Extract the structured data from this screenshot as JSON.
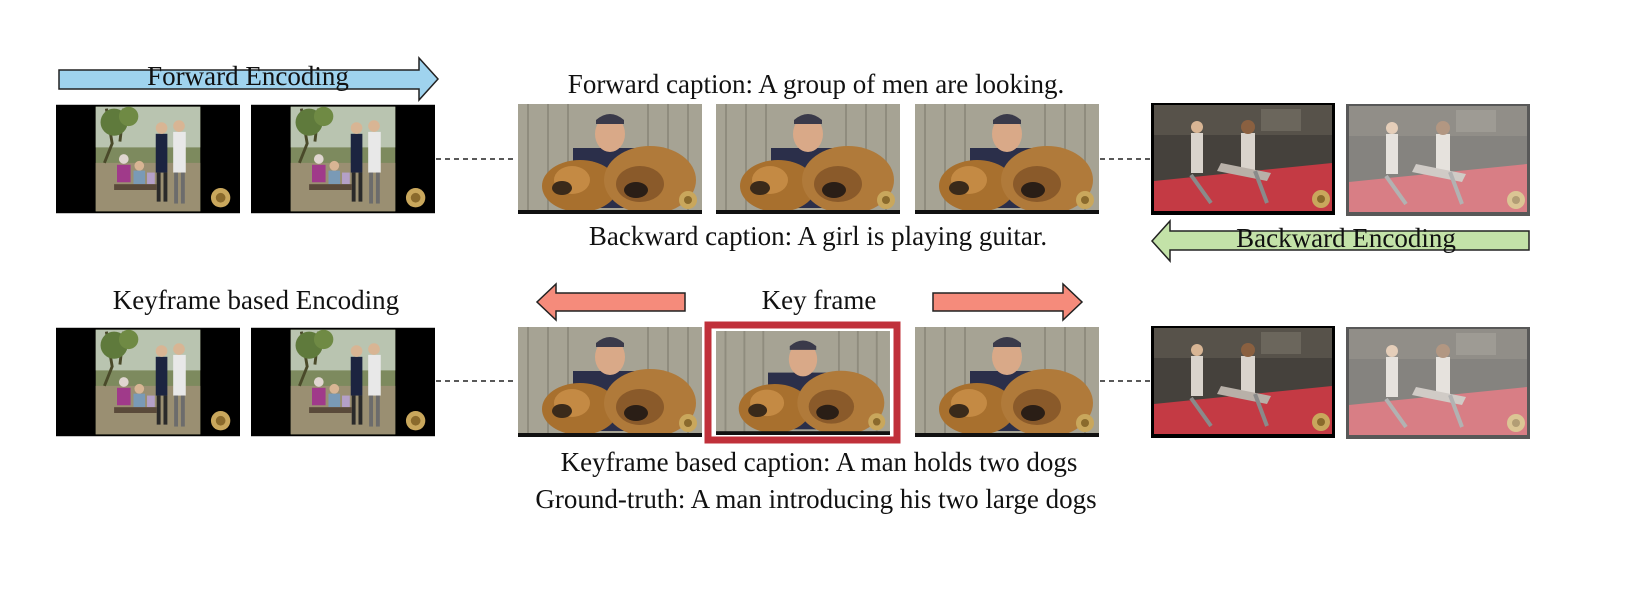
{
  "forward": {
    "label": "Forward Encoding",
    "caption": "Forward caption: A group of men are looking."
  },
  "backward": {
    "label": "Backward Encoding",
    "caption": "Backward caption: A girl is playing guitar."
  },
  "keyframe": {
    "label": "Keyframe based Encoding",
    "key_frame_label": "Key frame",
    "caption": "Keyframe based caption: A man holds two dogs",
    "ground_truth": "Ground-truth: A man introducing his two large dogs"
  },
  "colors": {
    "forward_arrow": "#9fd3ee",
    "backward_arrow": "#c3e2a8",
    "keyframe_arrow": "#f58b7b",
    "key_frame_border": "#c0303a"
  },
  "frame_content": [
    "park-group-scene",
    "park-group-scene",
    "man-with-dogs",
    "man-with-dogs",
    "man-with-dogs",
    "girls-guitar-scene",
    "girls-guitar-scene-dark"
  ]
}
